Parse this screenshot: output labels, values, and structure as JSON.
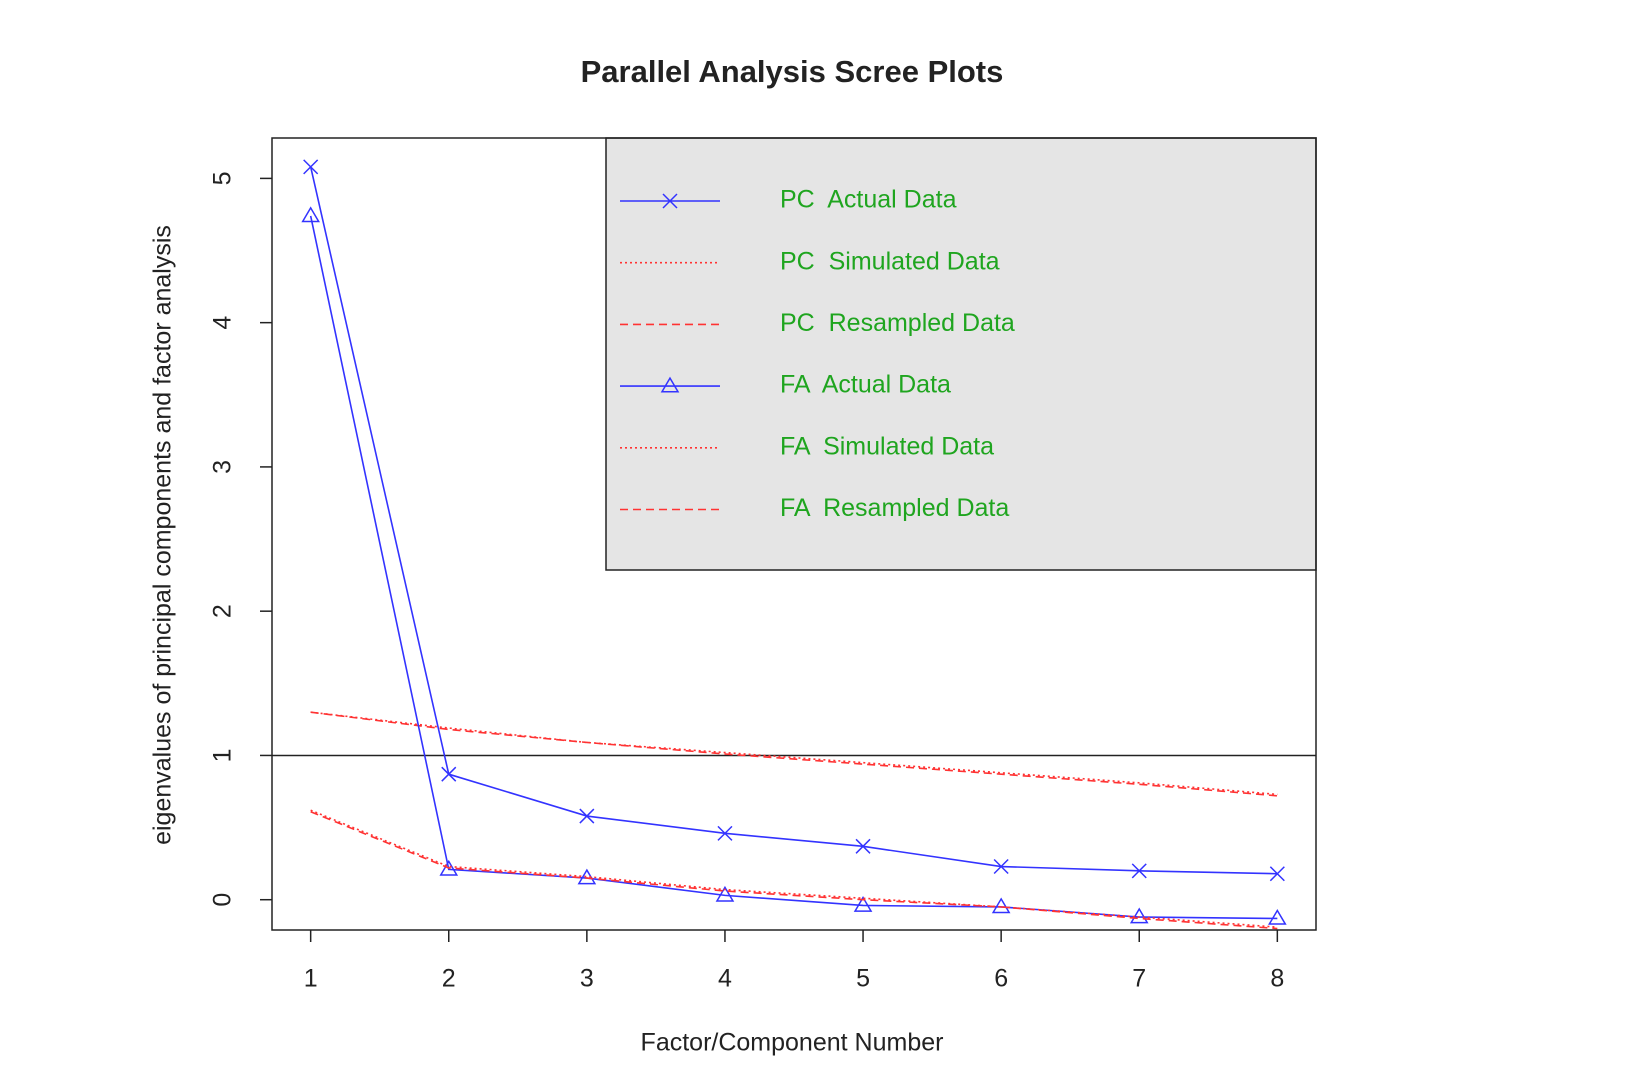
{
  "chart_data": {
    "type": "line",
    "title": "Parallel Analysis Scree Plots",
    "x_label": "Factor/Component Number",
    "y_label": "eigenvalues of principal components and factor analysis",
    "x": [
      1,
      2,
      3,
      4,
      5,
      6,
      7,
      8
    ],
    "xlim": [
      0.72,
      8.28
    ],
    "xticks": [
      1,
      2,
      3,
      4,
      5,
      6,
      7,
      8
    ],
    "ylim": [
      -0.21,
      5.28
    ],
    "yticks": [
      0,
      1,
      2,
      3,
      4,
      5
    ],
    "hline": 1,
    "legend": "top-right",
    "series": [
      {
        "name": "PC  Actual Data",
        "color": "#3333ff",
        "dash": "solid",
        "marker": "x",
        "values": [
          5.08,
          0.87,
          0.58,
          0.46,
          0.37,
          0.23,
          0.2,
          0.18
        ]
      },
      {
        "name": "PC  Simulated Data",
        "color": "#ff3333",
        "dash": "dotted",
        "marker": "none",
        "values": [
          1.3,
          1.19,
          1.09,
          1.02,
          0.95,
          0.88,
          0.81,
          0.73
        ]
      },
      {
        "name": "PC  Resampled Data",
        "color": "#ff3333",
        "dash": "dashed",
        "marker": "none",
        "values": [
          1.3,
          1.18,
          1.09,
          1.01,
          0.94,
          0.87,
          0.8,
          0.72
        ]
      },
      {
        "name": "FA  Actual Data",
        "color": "#3333ff",
        "dash": "solid",
        "marker": "triangle",
        "values": [
          4.74,
          0.21,
          0.15,
          0.03,
          -0.04,
          -0.05,
          -0.12,
          -0.13
        ]
      },
      {
        "name": "FA  Simulated Data",
        "color": "#ff3333",
        "dash": "dotted",
        "marker": "none",
        "values": [
          0.62,
          0.23,
          0.16,
          0.07,
          0.01,
          -0.05,
          -0.12,
          -0.19
        ]
      },
      {
        "name": "FA  Resampled Data",
        "color": "#ff3333",
        "dash": "dashed",
        "marker": "none",
        "values": [
          0.61,
          0.22,
          0.15,
          0.06,
          0.0,
          -0.05,
          -0.13,
          -0.2
        ]
      }
    ]
  }
}
